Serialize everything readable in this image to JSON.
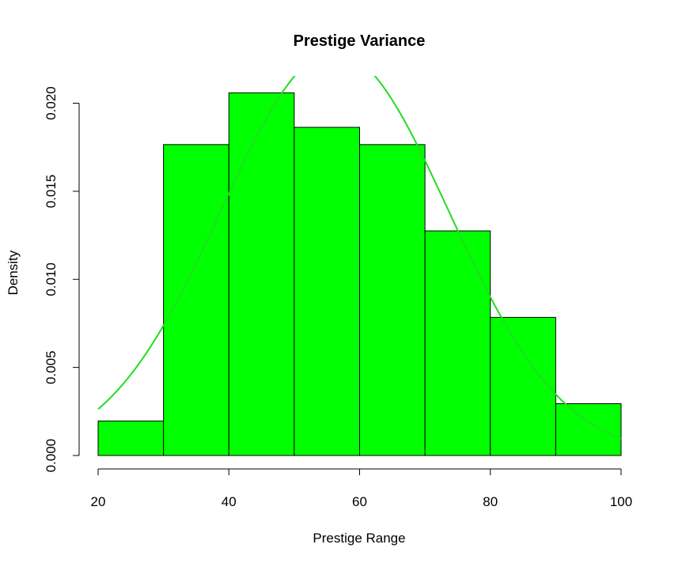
{
  "chart_data": {
    "type": "bar",
    "title": "Prestige Variance",
    "xlabel": "Prestige Range",
    "ylabel": "Density",
    "bins": [
      [
        20,
        30
      ],
      [
        30,
        40
      ],
      [
        40,
        50
      ],
      [
        50,
        60
      ],
      [
        60,
        70
      ],
      [
        70,
        80
      ],
      [
        80,
        90
      ],
      [
        90,
        100
      ]
    ],
    "values": [
      0.00196,
      0.01765,
      0.02059,
      0.01863,
      0.01765,
      0.01275,
      0.00784,
      0.00294
    ],
    "xlim": [
      20,
      100
    ],
    "ylim": [
      0,
      0.021
    ],
    "xticks": [
      20,
      40,
      60,
      80,
      100
    ],
    "xtick_labels": [
      "20",
      "40",
      "60",
      "80",
      "100"
    ],
    "yticks": [
      0,
      0.005,
      0.01,
      0.015,
      0.02
    ],
    "ytick_labels": [
      "0.000",
      "0.005",
      "0.010",
      "0.015",
      "0.020"
    ],
    "density_curve": {
      "type": "normal",
      "mean": 56.2,
      "sd": 17.4,
      "x_range": [
        20,
        100
      ]
    },
    "bar_color": "#00ff00",
    "bar_edge_color": "#000000",
    "curve_color": "#22dd22",
    "grid": false,
    "legend": "none"
  }
}
